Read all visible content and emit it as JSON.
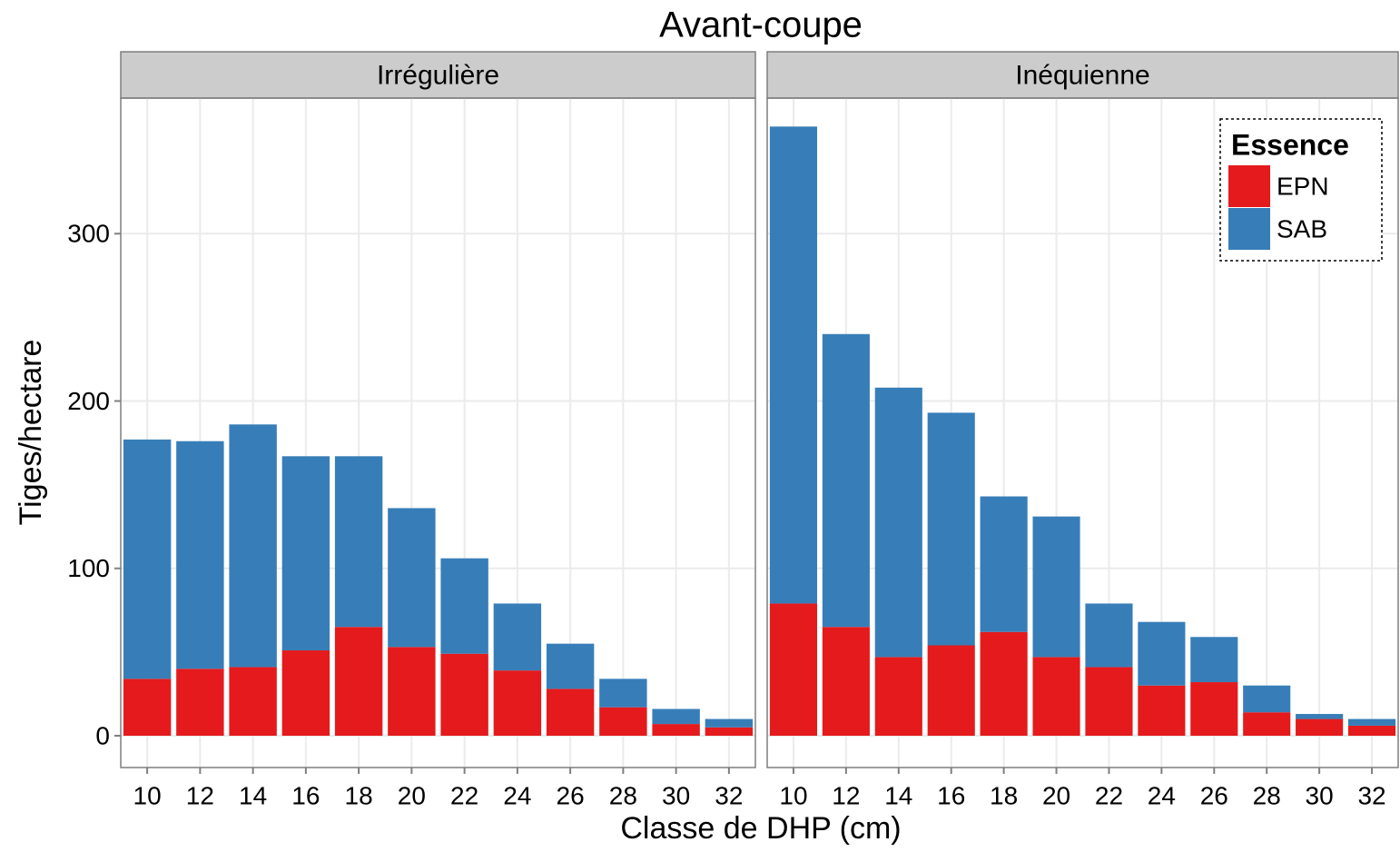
{
  "title": "Avant-coupe",
  "x_label": "Classe de DHP (cm)",
  "y_label": "Tiges/hectare",
  "legend": {
    "title": "Essence",
    "position": "top-right"
  },
  "chart_data": [
    {
      "type": "stacked_bar",
      "title": "Irrégulière",
      "categories": [
        10,
        12,
        14,
        16,
        18,
        20,
        22,
        24,
        26,
        28,
        30,
        32
      ],
      "series": [
        {
          "name": "EPN",
          "color": "#e41a1c",
          "values": [
            34,
            40,
            41,
            51,
            65,
            53,
            49,
            39,
            28,
            17,
            7,
            5
          ]
        },
        {
          "name": "SAB",
          "color": "#377eb8",
          "values": [
            143,
            136,
            145,
            116,
            102,
            83,
            57,
            40,
            27,
            17,
            9,
            5
          ]
        }
      ],
      "ylim": [
        -19,
        381
      ],
      "yticks": [
        0,
        100,
        200,
        300
      ],
      "grid": true
    },
    {
      "type": "stacked_bar",
      "title": "Inéquienne",
      "categories": [
        10,
        12,
        14,
        16,
        18,
        20,
        22,
        24,
        26,
        28,
        30,
        32
      ],
      "series": [
        {
          "name": "EPN",
          "color": "#e41a1c",
          "values": [
            79,
            65,
            47,
            54,
            62,
            47,
            41,
            30,
            32,
            14,
            10,
            6
          ]
        },
        {
          "name": "SAB",
          "color": "#377eb8",
          "values": [
            285,
            175,
            161,
            139,
            81,
            84,
            38,
            38,
            27,
            16,
            3,
            4
          ]
        }
      ],
      "ylim": [
        -19,
        381
      ],
      "yticks": [
        0,
        100,
        200,
        300
      ],
      "grid": true
    }
  ]
}
